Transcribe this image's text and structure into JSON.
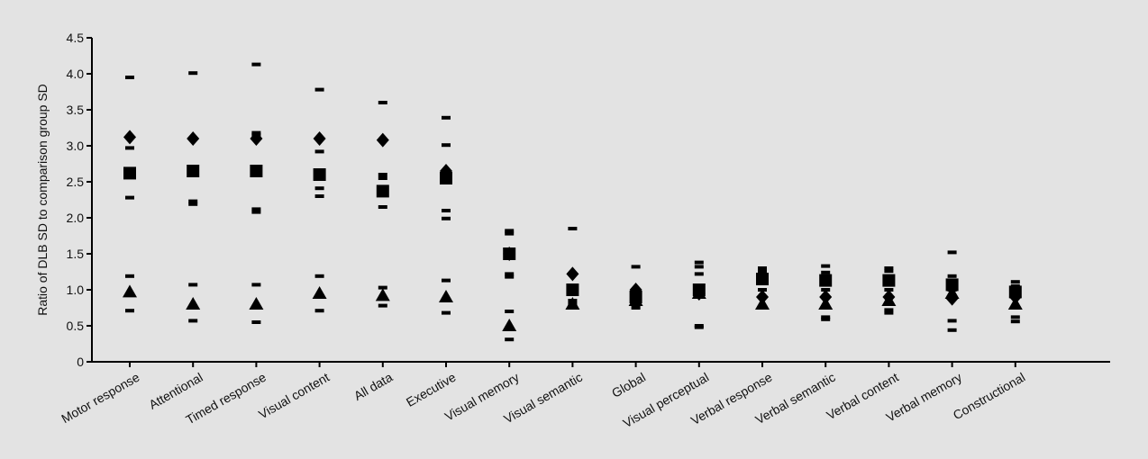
{
  "chart_data": {
    "type": "scatter",
    "ylabel": "Ratio of DLB SD to comparison group SD",
    "xlabel": "",
    "ylim": [
      0,
      4.5
    ],
    "yticks": [
      "0",
      "0.5",
      "1.0",
      "1.5",
      "2.0",
      "2.5",
      "3.0",
      "3.5",
      "4.0",
      "4.5"
    ],
    "categories": [
      "Motor response",
      "Attentional",
      "Timed response",
      "Visual content",
      "All data",
      "Executive",
      "Visual memory",
      "Visual semantic",
      "Global",
      "Visual perceptual",
      "Verbal response",
      "Verbal semantic",
      "Verbal content",
      "Verbal memory",
      "Constructional"
    ],
    "grid": false,
    "legend": "none",
    "series": [
      {
        "marker": "diamond",
        "values": [
          3.12,
          3.1,
          3.1,
          3.1,
          3.08,
          2.65,
          1.5,
          1.22,
          1.0,
          0.95,
          0.9,
          0.9,
          0.9,
          0.88,
          0.9
        ]
      },
      {
        "marker": "square",
        "values": [
          2.62,
          2.65,
          2.65,
          2.6,
          2.37,
          2.55,
          1.5,
          1.0,
          0.9,
          1.0,
          1.15,
          1.13,
          1.13,
          1.07,
          0.97
        ]
      },
      {
        "marker": "triangle",
        "values": [
          0.97,
          0.8,
          0.8,
          0.95,
          0.92,
          0.9,
          0.5,
          0.8,
          0.85,
          0.95,
          0.8,
          0.8,
          0.85,
          0.95,
          0.8
        ]
      }
    ],
    "bounds": [
      [
        0.71,
        1.19,
        2.28,
        2.97,
        3.95
      ],
      [
        0.57,
        1.07,
        2.19,
        2.23,
        4.01
      ],
      [
        0.55,
        1.07,
        2.08,
        2.12,
        3.15,
        3.18,
        4.13
      ],
      [
        0.71,
        1.19,
        2.3,
        2.41,
        2.92,
        3.78
      ],
      [
        0.78,
        1.03,
        2.15,
        2.55,
        2.6,
        3.6
      ],
      [
        0.68,
        1.13,
        1.99,
        2.1,
        3.01,
        3.39
      ],
      [
        0.31,
        0.7,
        1.18,
        1.22,
        1.78,
        1.82
      ],
      [
        0.8,
        0.85,
        1.85
      ],
      [
        0.75,
        0.98,
        1.32
      ],
      [
        0.48,
        0.5,
        0.9,
        1.22,
        1.32,
        1.38
      ],
      [
        0.75,
        1.0,
        1.26,
        1.3
      ],
      [
        0.59,
        0.62,
        1.0,
        1.24,
        1.33
      ],
      [
        0.68,
        0.72,
        1.0,
        1.26,
        1.3
      ],
      [
        0.44,
        0.57,
        1.0,
        1.19,
        1.52
      ],
      [
        0.56,
        0.62,
        0.75,
        1.05,
        1.11
      ]
    ]
  }
}
